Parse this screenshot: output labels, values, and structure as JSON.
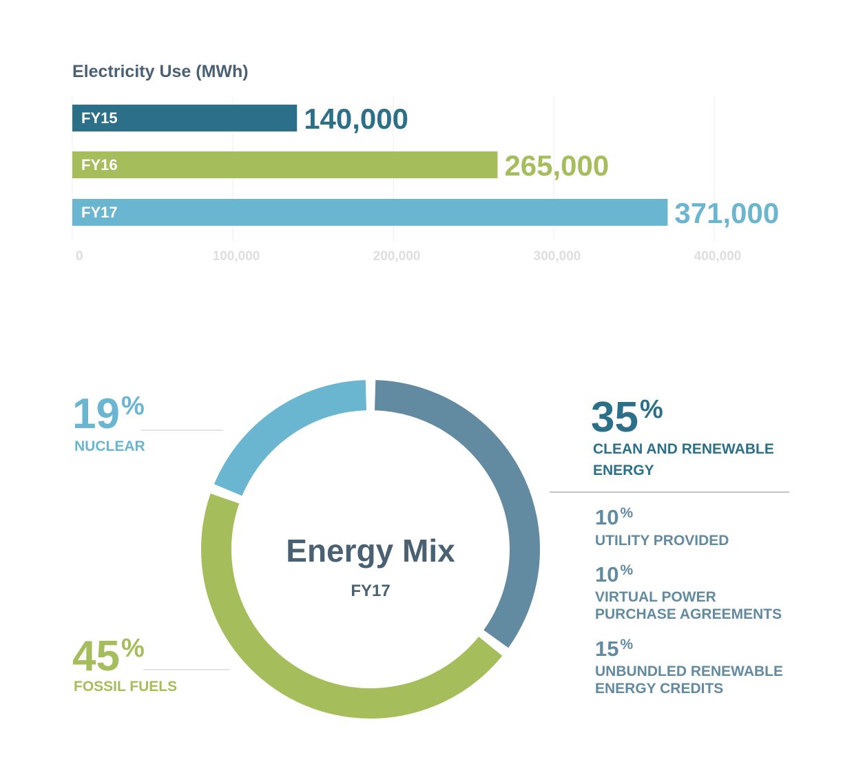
{
  "chart_data": [
    {
      "type": "bar",
      "orientation": "horizontal",
      "title": "Electricity Use (MWh)",
      "categories": [
        "FY15",
        "FY16",
        "FY17"
      ],
      "values": [
        140000,
        265000,
        371000
      ],
      "value_labels": [
        "140,000",
        "265,000",
        "371,000"
      ],
      "colors": [
        "#2b6f88",
        "#a6bd5c",
        "#6ab6d0"
      ],
      "xlim": [
        0,
        400000
      ],
      "xticks": [
        0,
        100000,
        200000,
        300000,
        400000
      ],
      "xtick_labels": [
        "0",
        "100,000",
        "200,000",
        "300,000",
        "400,000"
      ],
      "grid": true
    },
    {
      "type": "pie",
      "style": "donut",
      "center_title": "Energy Mix",
      "center_subtitle": "FY17",
      "slices": [
        {
          "label": "CLEAN AND RENEWABLE ENERGY",
          "label_lines": [
            "CLEAN AND RENEWABLE",
            "ENERGY"
          ],
          "value": 35,
          "color": "#628aa0",
          "text_color": "#2b6f88"
        },
        {
          "label": "FOSSIL FUELS",
          "label_lines": [
            "FOSSIL FUELS"
          ],
          "value": 45,
          "color": "#a6bd5c",
          "text_color": "#a6bd5c"
        },
        {
          "label": "NUCLEAR",
          "label_lines": [
            "NUCLEAR"
          ],
          "value": 19,
          "color": "#6ab6d0",
          "text_color": "#6ab6d0"
        }
      ],
      "breakdown": [
        {
          "value": 10,
          "label_lines": [
            "UTILITY PROVIDED"
          ]
        },
        {
          "value": 10,
          "label_lines": [
            "VIRTUAL POWER",
            "PURCHASE AGREEMENTS"
          ]
        },
        {
          "value": 15,
          "label_lines": [
            "UNBUNDLED RENEWABLE",
            "ENERGY CREDITS"
          ]
        }
      ],
      "breakdown_color": "#628aa0",
      "percent_sign": "%"
    }
  ]
}
